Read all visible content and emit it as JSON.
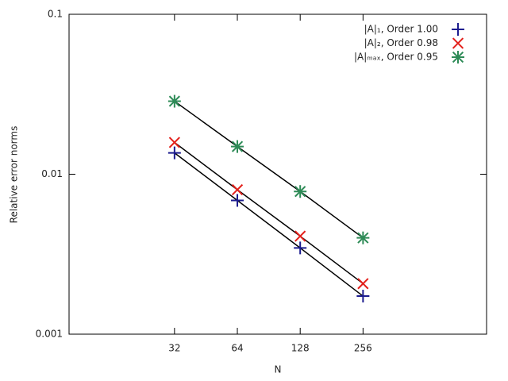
{
  "chart_data": {
    "type": "scatter",
    "xlabel": "N",
    "ylabel": "Relative error norms",
    "x": [
      32,
      64,
      128,
      256
    ],
    "series": [
      {
        "name": "|A|₁, Order 1.00",
        "color": "#1c1c8f",
        "marker": "plus",
        "values": [
          0.0136,
          0.00686,
          0.00346,
          0.00173
        ]
      },
      {
        "name": "|A|₂, Order 0.98",
        "color": "#e3201b",
        "marker": "cross",
        "values": [
          0.0158,
          0.008,
          0.0041,
          0.00207
        ]
      },
      {
        "name": "|A|ₘₐₓ, Order 0.95",
        "color": "#2e8b57",
        "marker": "star",
        "values": [
          0.0286,
          0.0149,
          0.0078,
          0.004
        ]
      }
    ],
    "xlim": [
      10,
      1000
    ],
    "ylim": [
      0.001,
      0.1
    ],
    "xticks": [
      32,
      64,
      128,
      256
    ],
    "yticks": [
      0.001,
      0.01,
      0.1
    ],
    "xscale": "log",
    "yscale": "log",
    "fit_lines": true,
    "legend": "top-right"
  }
}
